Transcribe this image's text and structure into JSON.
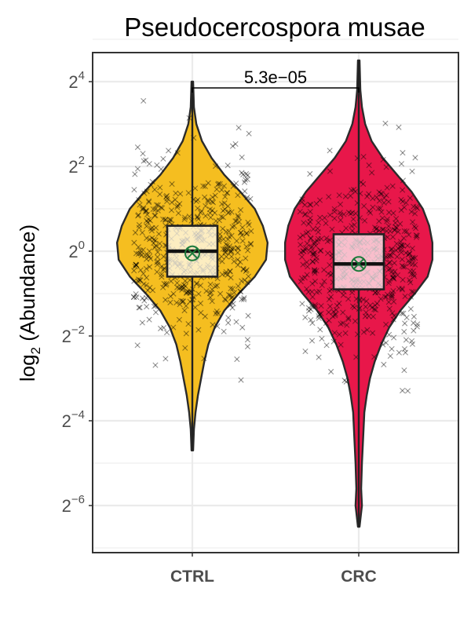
{
  "chart_data": {
    "type": "violin",
    "title": "Pseudocercospora musae",
    "ylabel_main": "log",
    "ylabel_sub": "2",
    "ylabel_rest": " (Abundance)",
    "y_scale": "log2",
    "y_tick_base": "2",
    "y_ticks": [
      {
        "exp": 4,
        "label": "4"
      },
      {
        "exp": 2,
        "label": "2"
      },
      {
        "exp": 0,
        "label": "0"
      },
      {
        "exp": -2,
        "label": "-2"
      },
      {
        "exp": -4,
        "label": "-4"
      },
      {
        "exp": -6,
        "label": "-6"
      }
    ],
    "y_range_log2": [
      -7.0,
      5.0
    ],
    "grid": true,
    "categories": [
      "CTRL",
      "CRC"
    ],
    "series": [
      {
        "category": "CTRL",
        "color": "#F5BE20",
        "box": {
          "q1": -0.6,
          "median": 0.0,
          "q3": 0.6
        },
        "whisker": {
          "low": -4.7,
          "high": 4.0
        },
        "mean_log2": -0.05
      },
      {
        "category": "CRC",
        "color": "#E8174A",
        "box": {
          "q1": -0.9,
          "median": -0.3,
          "q3": 0.4
        },
        "whisker": {
          "low": -6.5,
          "high": 4.5
        },
        "mean_log2": -0.3
      }
    ],
    "comparison": {
      "label": "5.3e−05",
      "groups": [
        "CTRL",
        "CRC"
      ]
    },
    "mean_marker_color": "#1B7A3A"
  }
}
